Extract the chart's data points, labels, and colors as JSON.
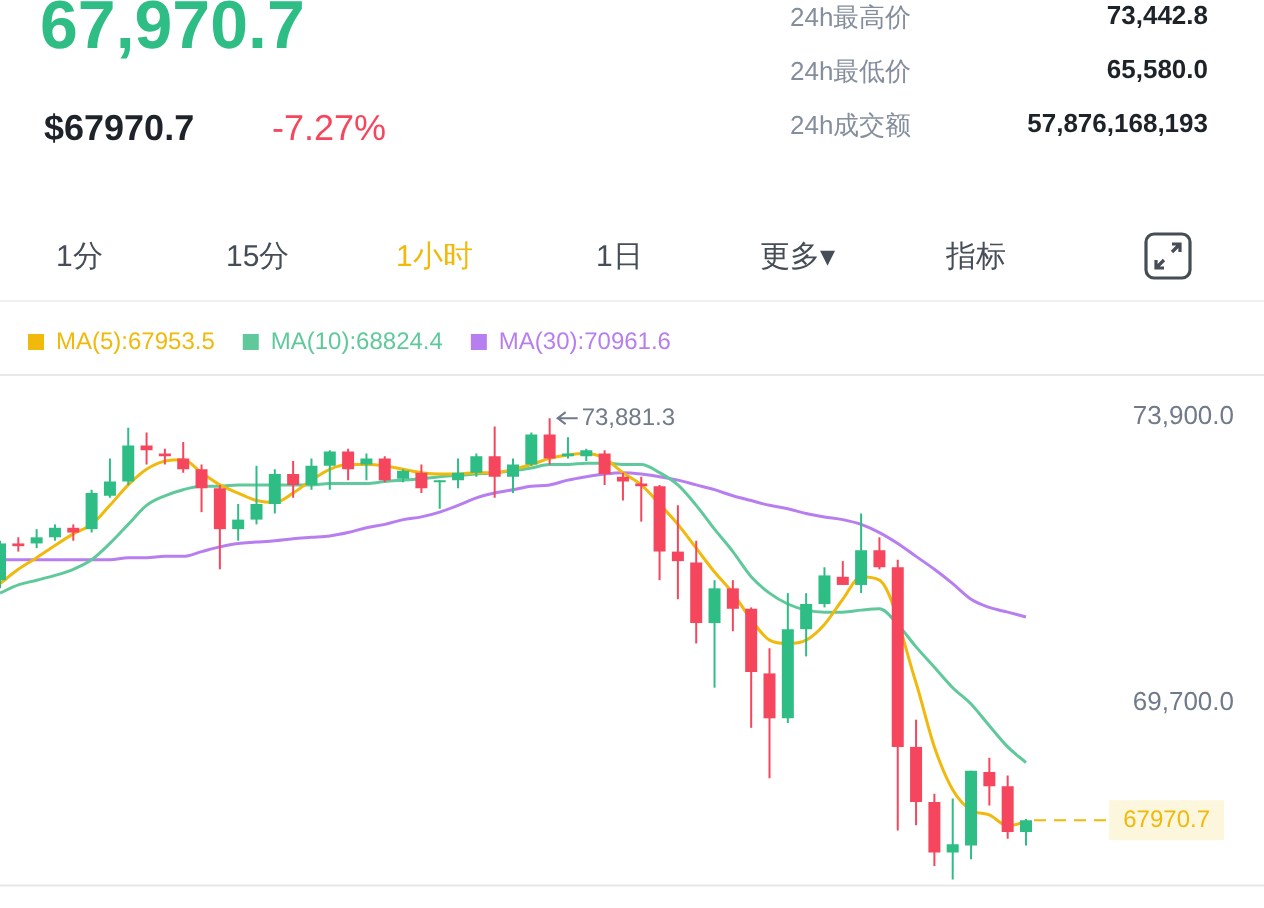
{
  "chart_data": [
    {
      "type": "other",
      "title": "67,970.7",
      "subtitle": "$67970.7",
      "annotations": [
        "-7.27%",
        "24h最高价",
        "73,442.8",
        "24h最低价",
        "65,580.0",
        "24h成交额",
        "57,876,168,193",
        "1分",
        "15分",
        "1小时",
        "1日",
        "更多▾",
        "指标"
      ]
    },
    {
      "type": "candlestick",
      "categories": [
        null,
        null,
        null,
        null,
        null,
        null,
        null,
        null,
        null,
        null,
        null,
        null,
        null,
        null,
        null,
        null,
        null,
        null,
        null,
        null,
        null,
        null,
        null,
        null,
        null,
        null,
        null,
        null,
        null,
        null,
        null,
        null,
        null,
        null,
        null,
        null,
        null,
        null,
        null,
        null,
        null,
        null,
        null,
        null,
        null,
        null,
        null,
        null,
        null,
        null,
        null,
        null,
        null,
        null,
        null,
        null,
        null
      ],
      "ohlc": [
        [
          71500,
          72080,
          71380,
          72040
        ],
        [
          72040,
          72130,
          71920,
          72000
        ],
        [
          72040,
          72250,
          71970,
          72130
        ],
        [
          72130,
          72320,
          72080,
          72270
        ],
        [
          72270,
          72320,
          72080,
          72200
        ],
        [
          72250,
          72830,
          72200,
          72780
        ],
        [
          72740,
          73290,
          72710,
          72950
        ],
        [
          72950,
          73740,
          72900,
          73480
        ],
        [
          73480,
          73670,
          73200,
          73410
        ],
        [
          73360,
          73430,
          73200,
          73320
        ],
        [
          73290,
          73530,
          73080,
          73130
        ],
        [
          73130,
          73200,
          72500,
          72850
        ],
        [
          72850,
          72900,
          71660,
          72250
        ],
        [
          72250,
          72620,
          72080,
          72390
        ],
        [
          72390,
          73180,
          72320,
          72620
        ],
        [
          72620,
          73130,
          72480,
          73060
        ],
        [
          73060,
          73250,
          72710,
          72900
        ],
        [
          72900,
          73290,
          72830,
          73180
        ],
        [
          73180,
          73410,
          72830,
          73390
        ],
        [
          73390,
          73430,
          72970,
          73130
        ],
        [
          73200,
          73360,
          72970,
          73290
        ],
        [
          73290,
          73320,
          72940,
          72970
        ],
        [
          72990,
          73130,
          72940,
          73110
        ],
        [
          73080,
          73200,
          72780,
          72850
        ],
        [
          72940,
          72970,
          72550,
          72970
        ],
        [
          72970,
          73290,
          72850,
          73080
        ],
        [
          73080,
          73360,
          73020,
          73320
        ],
        [
          73320,
          73760,
          72710,
          73020
        ],
        [
          73020,
          73290,
          72780,
          73200
        ],
        [
          73200,
          73670,
          73180,
          73640
        ],
        [
          73640,
          73881.3,
          73200,
          73290
        ],
        [
          73320,
          73600,
          73290,
          73360
        ],
        [
          73320,
          73430,
          73250,
          73410
        ],
        [
          73360,
          73410,
          72900,
          73060
        ],
        [
          73020,
          73080,
          72670,
          72950
        ],
        [
          72920,
          73020,
          72360,
          72880
        ],
        [
          72880,
          72900,
          71500,
          71920
        ],
        [
          71920,
          72600,
          71220,
          71780
        ],
        [
          71760,
          72080,
          70570,
          70870
        ],
        [
          70870,
          71500,
          69920,
          71380
        ],
        [
          71380,
          71500,
          70750,
          71080
        ],
        [
          71080,
          71100,
          69330,
          70150
        ],
        [
          70130,
          70500,
          68590,
          69470
        ],
        [
          69470,
          71310,
          69400,
          70780
        ],
        [
          70780,
          71310,
          70380,
          71150
        ],
        [
          71150,
          71690,
          71100,
          71570
        ],
        [
          71550,
          71780,
          71430,
          71430
        ],
        [
          71430,
          72480,
          71310,
          71940
        ],
        [
          71940,
          72130,
          71660,
          71690
        ],
        [
          71690,
          71800,
          67820,
          69050
        ],
        [
          69050,
          69450,
          67900,
          68240
        ],
        [
          68240,
          68360,
          67300,
          67500
        ],
        [
          67500,
          68290,
          67100,
          67620
        ],
        [
          67600,
          68700,
          67400,
          68700
        ],
        [
          68680,
          68890,
          68190,
          68470
        ],
        [
          68470,
          68630,
          67700,
          67800
        ],
        [
          67800,
          67990,
          67600,
          67970.7
        ]
      ],
      "series": [
        {
          "name": "MA(5):67953.5",
          "type": "line",
          "color": "#f0b90b",
          "values": [
            71450,
            71660,
            71830,
            72010,
            72180,
            72320,
            72600,
            72900,
            73130,
            73250,
            73270,
            73080,
            72900,
            72780,
            72670,
            72640,
            72780,
            72970,
            73130,
            73200,
            73200,
            73180,
            73130,
            73080,
            73060,
            73060,
            73080,
            73080,
            73130,
            73200,
            73290,
            73340,
            73360,
            73290,
            73080,
            72900,
            72620,
            72320,
            71970,
            71620,
            71310,
            70920,
            70620,
            70570,
            70620,
            70850,
            71220,
            71550,
            71500,
            null,
            69990,
            69050,
            68420,
            68120,
            68050,
            67890,
            67950
          ]
        },
        {
          "name": "MA(10):68824.4",
          "type": "line",
          "color": "#5fc99b",
          "values": [
            71310,
            71430,
            71500,
            71570,
            71660,
            71800,
            72040,
            72320,
            72600,
            72740,
            72830,
            72880,
            72880,
            72900,
            72900,
            72900,
            72900,
            72900,
            72920,
            72920,
            72920,
            72950,
            72970,
            72990,
            73020,
            73040,
            73060,
            73080,
            73110,
            73150,
            73200,
            73200,
            73220,
            73220,
            73200,
            73200,
            73080,
            72900,
            72600,
            72250,
            71920,
            71550,
            71310,
            71150,
            71060,
            71030,
            71030,
            71060,
            71080,
            70850,
            70520,
            70220,
            69920,
            69680,
            69360,
            69050,
            68820
          ]
        },
        {
          "name": "MA(30):70961.6",
          "type": "line",
          "color": "#b77ef0",
          "values": [
            71800,
            71800,
            71800,
            71800,
            71800,
            71800,
            71800,
            71830,
            71830,
            71850,
            71850,
            71920,
            71990,
            72040,
            72060,
            72080,
            72110,
            72130,
            72150,
            72200,
            72270,
            72320,
            72390,
            72430,
            72500,
            72600,
            72710,
            72780,
            72830,
            72880,
            72900,
            72970,
            73020,
            73060,
            73080,
            73060,
            73020,
            72970,
            72900,
            72830,
            72740,
            72670,
            72600,
            72550,
            72480,
            72430,
            72390,
            72320,
            72200,
            72040,
            71850,
            71660,
            71450,
            71220,
            71100,
            71030,
            70960
          ]
        }
      ],
      "ylim": [
        67000,
        74530
      ],
      "yticks": [
        {
          "value": 73900,
          "label": "73,900.0"
        },
        {
          "value": 69700,
          "label": "69,700.0"
        }
      ],
      "tick_labels": "y",
      "legend": "top left",
      "line_style": "solid",
      "marker": "none",
      "annotations": [
        "73,881.3"
      ],
      "ref_lines": [
        {
          "axis": "y",
          "value": 67970.7,
          "label": "67970.7",
          "color": "#f0b90b",
          "line_style": "dashed"
        }
      ]
    }
  ]
}
